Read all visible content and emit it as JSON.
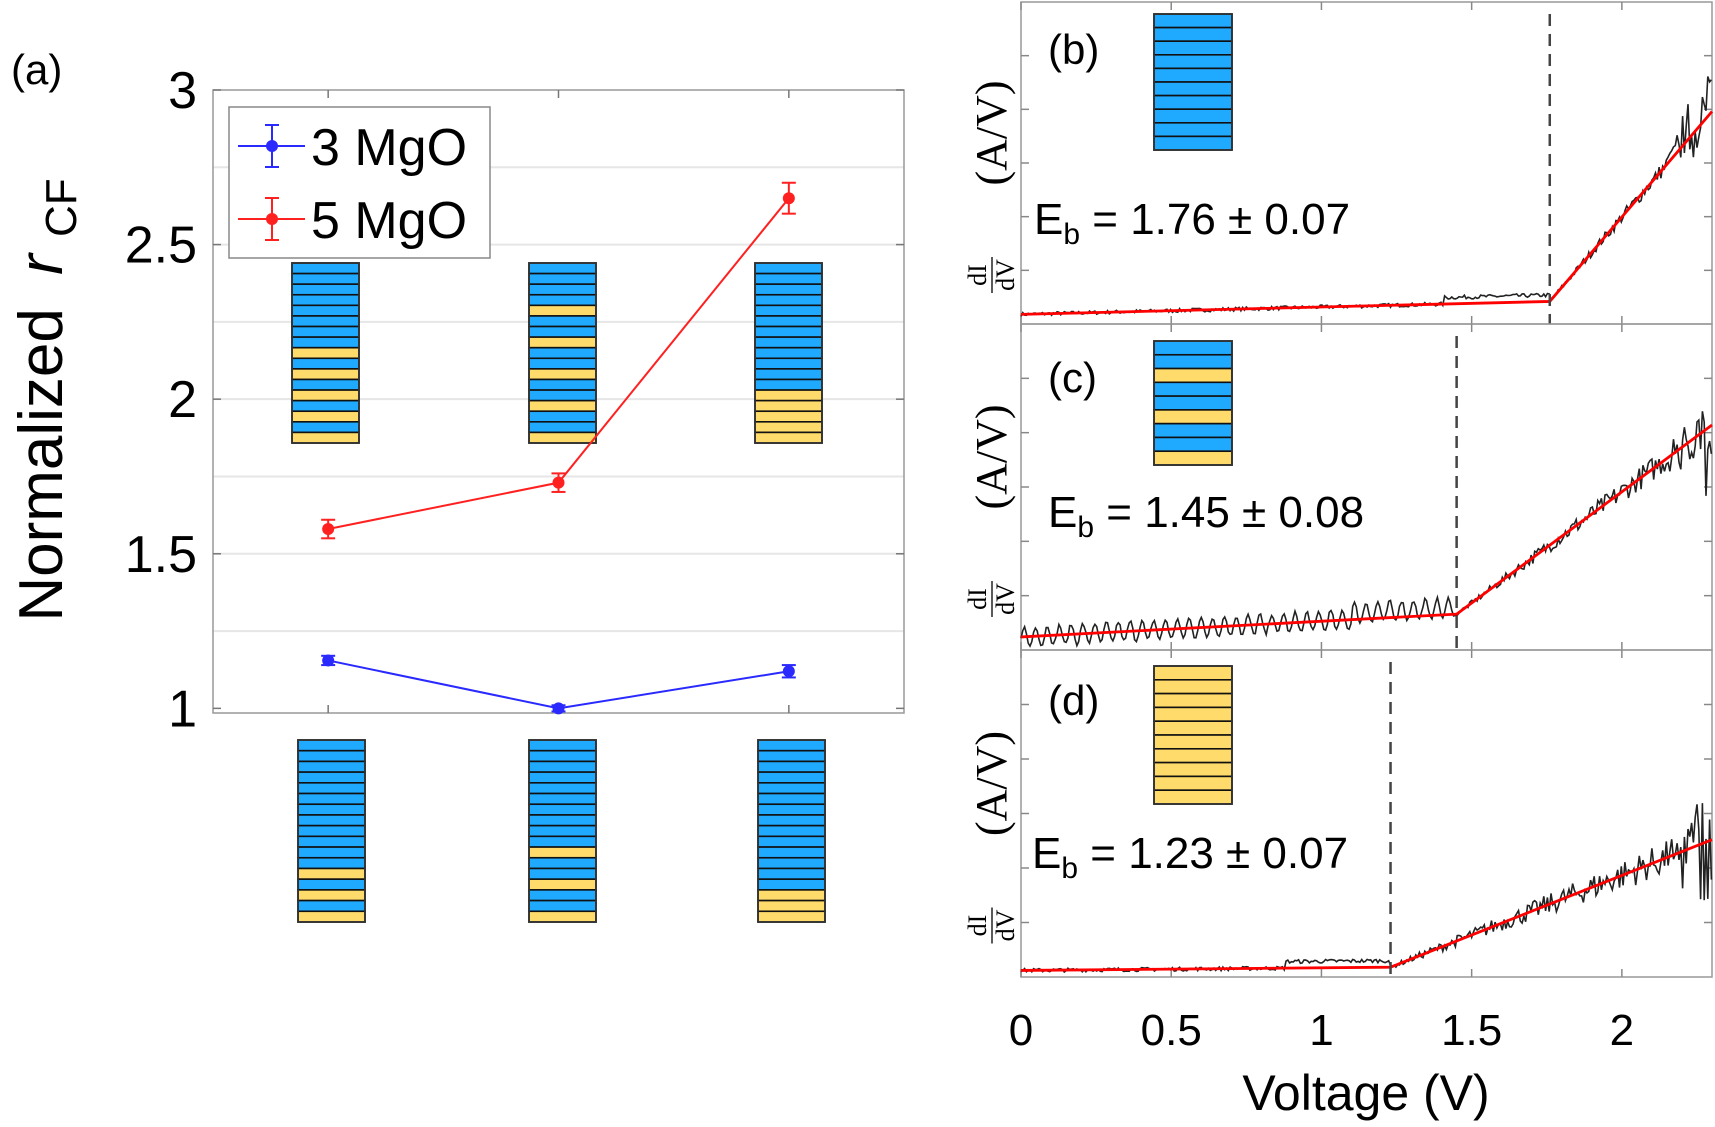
{
  "colors": {
    "blue_layer": "#1fa9ff",
    "yellow_layer": "#fedb6a",
    "series_3": "#2a2aff",
    "series_5": "#ff2020",
    "fit": "#ff0000",
    "measured": "#222222",
    "grid": "#e6e6e6"
  },
  "chart_data": [
    {
      "type": "line",
      "panel_label": "(a)",
      "ylabel_main": "Normalized",
      "ylabel_var": "r",
      "ylabel_sub": "CF",
      "ylim": [
        0.985,
        3
      ],
      "xlim": [
        0.5,
        3.5
      ],
      "yticks": [
        "1",
        "1.5",
        "2",
        "2.5",
        "3"
      ],
      "ytick_values": [
        1,
        1.5,
        2,
        2.5,
        3
      ],
      "grid": "minor horizontal every 0.25",
      "legend_placement": "top-left",
      "x": [
        1,
        2,
        3
      ],
      "series": [
        {
          "name": "3 MgO",
          "values": [
            1.155,
            1.0,
            1.12
          ],
          "errors": [
            0.015,
            0.01,
            0.02
          ],
          "color": "#2a2aff"
        },
        {
          "name": "5 MgO",
          "values": [
            1.58,
            1.73,
            2.65
          ],
          "errors": [
            0.03,
            0.03,
            0.05
          ],
          "color": "#ff2020"
        }
      ],
      "stacks_5MgO": [
        "BBBBBBBBYBYBYBYBY",
        "BBBBYBBYBBYBBYBBY",
        "BBBBBBBBBBBBYYYYY"
      ],
      "stacks_3MgO": [
        "BBBBBBBBBBBBYBYBY",
        "BBBBBBBBBBYBBYBBY",
        "BBBBBBBBBBBBBBYYY"
      ]
    },
    {
      "type": "line",
      "panel_label": "(b)",
      "annotation_E": "E",
      "annotation_sub": "b",
      "annotation_value": " = 1.76 ± 0.07",
      "Eb": 1.76,
      "fit_points": [
        [
          0,
          0.03
        ],
        [
          1.76,
          0.07
        ],
        [
          2.3,
          0.66
        ]
      ],
      "stack": "BBBBBBBBBB",
      "xlim": [
        0,
        2.3
      ],
      "ylim": [
        0,
        1
      ]
    },
    {
      "type": "line",
      "panel_label": "(c)",
      "annotation_E": "E",
      "annotation_sub": "b",
      "annotation_value": " = 1.45 ± 0.08",
      "Eb": 1.45,
      "fit_points": [
        [
          0,
          0.04
        ],
        [
          1.45,
          0.11
        ],
        [
          2.3,
          0.69
        ]
      ],
      "stack": "BBYBBYBBY",
      "xlim": [
        0,
        2.3
      ],
      "ylim": [
        0,
        1
      ]
    },
    {
      "type": "line",
      "panel_label": "(d)",
      "annotation_E": "E",
      "annotation_sub": "b",
      "annotation_value": " = 1.23 ± 0.07",
      "Eb": 1.23,
      "fit_points": [
        [
          0,
          0.02
        ],
        [
          1.23,
          0.03
        ],
        [
          2.3,
          0.42
        ]
      ],
      "stack": "YYYYYYYYYY",
      "xlim": [
        0,
        2.3
      ],
      "ylim": [
        0,
        1
      ]
    }
  ],
  "shared_x": {
    "label": "Voltage (V)",
    "ticks": [
      "0",
      "0.5",
      "1",
      "1.5",
      "2"
    ],
    "tick_values": [
      0,
      0.5,
      1,
      1.5,
      2
    ]
  },
  "shared_ylabel": {
    "num": "dI",
    "den": "dV",
    "unit": "(A/V)"
  }
}
